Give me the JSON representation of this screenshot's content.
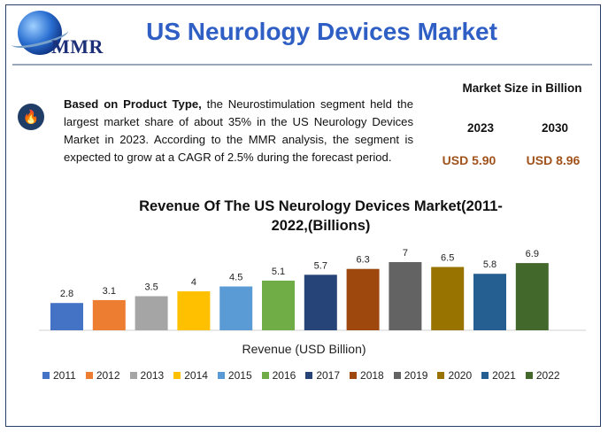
{
  "header": {
    "logo_text": "MMR",
    "title": "US Neurology Devices Market"
  },
  "summary": {
    "lead": "Based on Product Type,",
    "body": " the Neurostimulation segment held the largest market share of about 35% in the US Neurology Devices Market in 2023. According to the MMR analysis, the segment is expected to grow at a CAGR of 2.5% during the forecast period."
  },
  "market_size": {
    "title": "Market Size in Billion",
    "year_a": "2023",
    "year_b": "2030",
    "value_a": "USD 5.90",
    "value_b": "USD 8.96"
  },
  "colors": {
    "title": "#2f5fc4",
    "usd": "#a0521a"
  },
  "chart_data": {
    "type": "bar",
    "title": "Revenue Of The US Neurology Devices Market(2011-2022,(Billions)",
    "title_line1": "Revenue Of The US Neurology Devices Market(2011-",
    "title_line2": "2022,(Billions)",
    "xlabel": "Revenue (USD Billion)",
    "ylabel": "",
    "ylim": [
      0,
      7
    ],
    "categories": [
      "2011",
      "2012",
      "2013",
      "2014",
      "2015",
      "2016",
      "2017",
      "2018",
      "2019",
      "2020",
      "2021",
      "2022"
    ],
    "values": [
      2.8,
      3.1,
      3.5,
      4,
      4.5,
      5.1,
      5.7,
      6.3,
      7,
      6.5,
      5.8,
      6.9
    ],
    "value_labels": [
      "2.8",
      "3.1",
      "3.5",
      "4",
      "4.5",
      "5.1",
      "5.7",
      "6.3",
      "7",
      "6.5",
      "5.8",
      "6.9"
    ],
    "colors": [
      "#4472c4",
      "#ed7d31",
      "#a5a5a5",
      "#ffc000",
      "#5b9bd5",
      "#70ad47",
      "#264478",
      "#9e480e",
      "#636363",
      "#997300",
      "#255e91",
      "#43682b"
    ],
    "legend_position": "bottom"
  }
}
